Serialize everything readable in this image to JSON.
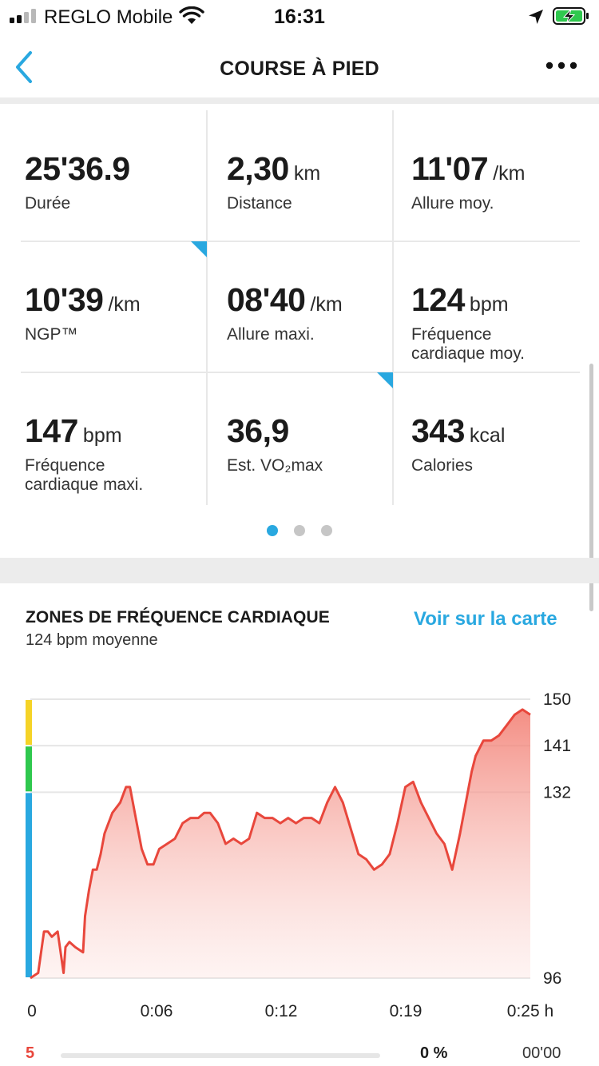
{
  "status_bar": {
    "carrier": "REGLO Mobile",
    "time": "16:31"
  },
  "nav": {
    "title": "COURSE À PIED"
  },
  "stats": [
    {
      "value": "25'36.9",
      "unit": "",
      "label": "Durée"
    },
    {
      "value": "2,30",
      "unit": "km",
      "label": "Distance"
    },
    {
      "value": "11'07",
      "unit": "/km",
      "label": "Allure moy."
    },
    {
      "value": "10'39",
      "unit": "/km",
      "label": "NGP™"
    },
    {
      "value": "08'40",
      "unit": "/km",
      "label": "Allure maxi."
    },
    {
      "value": "124",
      "unit": "bpm",
      "label": "Fréquence\ncardiaque moy."
    },
    {
      "value": "147",
      "unit": "bpm",
      "label": "Fréquence\ncardiaque maxi."
    },
    {
      "value": "36,9",
      "unit": "",
      "label": "Est. VO₂max"
    },
    {
      "value": "343",
      "unit": "kcal",
      "label": "Calories"
    }
  ],
  "pager": {
    "pages": 3,
    "active": 0
  },
  "hr_section": {
    "title": "ZONES DE FRÉQUENCE CARDIAQUE",
    "subtitle": "124 bpm moyenne",
    "map_link": "Voir sur la carte"
  },
  "zone_row": {
    "zone": "5",
    "percent": "0 %",
    "time": "00'00",
    "fill_fraction": 0
  },
  "colors": {
    "accent": "#29a8e0",
    "hr_line": "#e8473c",
    "zone_yellow": "#f5d327",
    "zone_green": "#2fc84e",
    "zone_blue": "#29a8e0"
  },
  "chart_data": {
    "type": "area",
    "y_ticks": [
      "150",
      "141",
      "132",
      "96"
    ],
    "x_ticks": [
      "0",
      "0:06",
      "0:12",
      "0:19",
      "0:25 h"
    ],
    "ylim": [
      96,
      150
    ],
    "xlim": [
      0,
      25.6
    ],
    "zones": [
      {
        "from": 141,
        "to": 150,
        "color": "#f5d327"
      },
      {
        "from": 132,
        "to": 141,
        "color": "#2fc84e"
      },
      {
        "from": 96,
        "to": 132,
        "color": "#29a8e0"
      }
    ],
    "series": [
      {
        "x": [
          0,
          0.4,
          0.7,
          0.9,
          1.1,
          1.4,
          1.7,
          1.8,
          2.0,
          2.3,
          2.7,
          2.8,
          3.0,
          3.2,
          3.4,
          3.6,
          3.8,
          4.2,
          4.6,
          4.9,
          5.1,
          5.4,
          5.7,
          6.0,
          6.3,
          6.6,
          7.0,
          7.4,
          7.8,
          8.2,
          8.6,
          8.9,
          9.2,
          9.6,
          10.0,
          10.4,
          10.8,
          11.2,
          11.6,
          12.0,
          12.4,
          12.8,
          13.2,
          13.6,
          14.0,
          14.4,
          14.8,
          15.2,
          15.6,
          16.0,
          16.4,
          16.8,
          17.2,
          17.6,
          18.0,
          18.4,
          18.8,
          19.2,
          19.6,
          20.0,
          20.4,
          20.8,
          21.2,
          21.6,
          22.0,
          22.4,
          22.6,
          22.8,
          23.2,
          23.6,
          24.0,
          24.4,
          24.8,
          25.2,
          25.6
        ],
        "y": [
          96,
          97,
          105,
          105,
          104,
          105,
          97,
          102,
          103,
          102,
          101,
          108,
          113,
          117,
          117,
          120,
          124,
          128,
          130,
          133,
          133,
          127,
          121,
          118,
          118,
          121,
          122,
          123,
          126,
          127,
          127,
          128,
          128,
          126,
          122,
          123,
          122,
          123,
          128,
          127,
          127,
          126,
          127,
          126,
          127,
          127,
          126,
          130,
          133,
          130,
          125,
          120,
          119,
          117,
          118,
          120,
          126,
          133,
          134,
          130,
          127,
          124,
          122,
          117,
          124,
          132,
          136,
          139,
          142,
          142,
          143,
          145,
          147,
          148,
          147
        ]
      }
    ]
  }
}
